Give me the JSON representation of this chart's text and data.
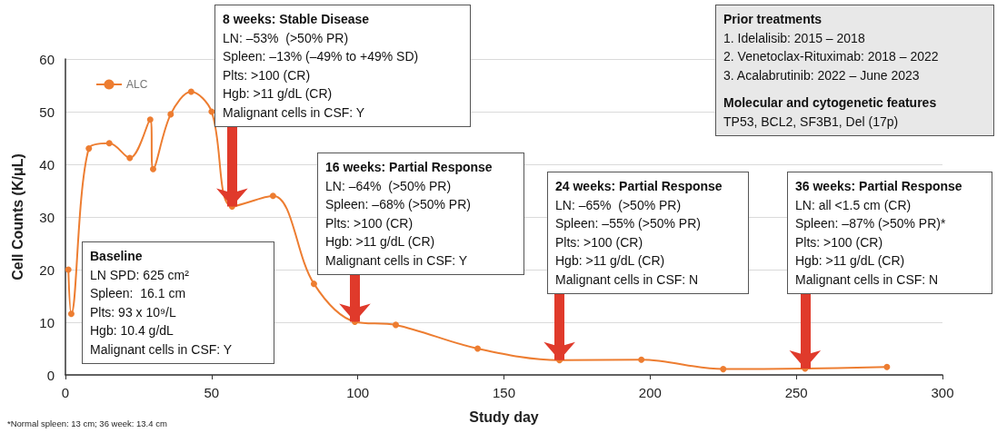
{
  "chart_data": {
    "type": "line",
    "xlabel": "Study day",
    "ylabel": "Cell Counts (K/μL)",
    "x": [
      1,
      2,
      8,
      15,
      22,
      29,
      30,
      36,
      43,
      50,
      57,
      71,
      85,
      99,
      113,
      141,
      169,
      197,
      225,
      253,
      281
    ],
    "series": [
      {
        "name": "ALC",
        "color": "#ed7d31",
        "values": [
          20,
          11.6,
          43,
          44,
          41.2,
          48.5,
          39.1,
          49.5,
          53.8,
          50,
          32,
          34,
          17.3,
          10.1,
          9.5,
          5,
          2.8,
          2.9,
          1.1,
          1.2,
          1.5
        ]
      }
    ],
    "xlim": [
      0,
      300
    ],
    "xticks": [
      0,
      50,
      100,
      150,
      200,
      250,
      300
    ],
    "ylim": [
      0,
      60
    ],
    "yticks": [
      0,
      10,
      20,
      30,
      40,
      50,
      60
    ],
    "grid": "y",
    "legend": "top left",
    "marker": "circle",
    "line_style": "solid",
    "annotations": [
      {
        "text": "8 weeks: Stable Disease\nLN: –53%  (>50% PR)\nSpleen: –13% (–49% to +49% SD)\nPlts: >100 (CR)\nHgb: >11 g/dL (CR)\nMalignant cells in CSF: Y",
        "x": 57,
        "y": 32
      },
      {
        "text": "16 weeks: Partial Response\nLN: –64%  (>50% PR)\nSpleen: –68% (>50% PR)\nPlts: >100 (CR)\nHgb: >11 g/dL (CR)\nMalignant cells in CSF: Y",
        "x": 99,
        "y": 10.1
      },
      {
        "text": "24 weeks: Partial Response\nLN: –65%  (>50% PR)\nSpleen: –55% (>50% PR)\nPlts: >100 (CR)\nHgb: >11 g/dL (CR)\nMalignant cells in CSF: N",
        "x": 169,
        "y": 2.8
      },
      {
        "text": "36 weeks: Partial Response\nLN: all <1.5 cm (CR)\nSpleen: –87% (>50% PR)*\nPlts: >100 (CR)\nHgb: >11 g/dL (CR)\nMalignant cells in CSF: N",
        "x": 253,
        "y": 1.2
      },
      "Baseline\nLN SPD: 625 cm²\nSpleen:  16.1 cm\nPlts: 93 x 10⁹/L\nHgb: 10.4 g/dL\nMalignant cells in CSF: Y",
      "Prior treatments\n1. Idelalisib: 2015 – 2018\n2. Venetoclax-Rituximab: 2018 – 2022\n3. Acalabrutinib: 2022 – June 2023",
      "Molecular and cytogenetic features\nTP53, BCL2, SF3B1, Del (17p)",
      "*Normal spleen: 13 cm; 36 week: 13.4 cm"
    ]
  }
}
